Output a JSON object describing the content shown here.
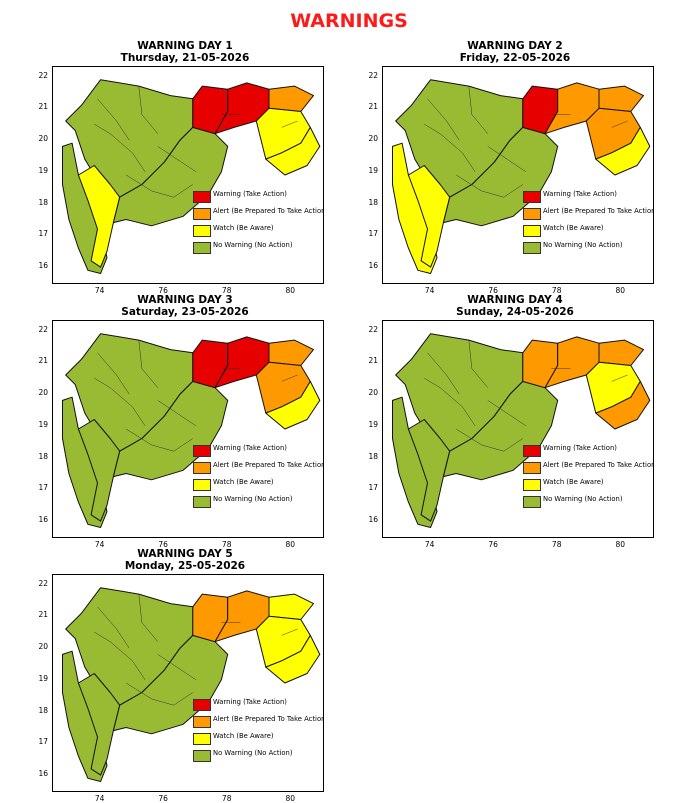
{
  "page_title": "WARNINGS",
  "colors": {
    "warning": "#e60000",
    "alert": "#ff9900",
    "watch": "#ffff00",
    "none": "#99bb33"
  },
  "axes": {
    "x_ticks": [
      "74",
      "76",
      "78",
      "80"
    ],
    "y_ticks": [
      "22",
      "21",
      "20",
      "19",
      "18",
      "17",
      "16"
    ],
    "x_range": [
      72.5,
      81
    ],
    "y_range": [
      15.5,
      22.3
    ]
  },
  "legend": [
    {
      "key": "warning",
      "label": "Warning (Take Action)",
      "color": "#e60000"
    },
    {
      "key": "alert",
      "label": "Alert (Be Prepared To Take Action)",
      "color": "#ff9900"
    },
    {
      "key": "watch",
      "label": "Watch (Be Aware)",
      "color": "#ffff00"
    },
    {
      "key": "none",
      "label": "No Warning (No Action)",
      "color": "#99bb33"
    }
  ],
  "panels": [
    {
      "day": "WARNING DAY 1",
      "date": "Thursday, 21-05-2026",
      "regions": {
        "west": "none",
        "konkan": "none",
        "ghats": "watch",
        "central": "none",
        "vid_w": "warning",
        "vid_c": "warning",
        "vid_ne": "alert",
        "vid_e": "watch",
        "vid_se": "watch"
      }
    },
    {
      "day": "WARNING DAY 2",
      "date": "Friday, 22-05-2026",
      "regions": {
        "west": "none",
        "konkan": "watch",
        "ghats": "watch",
        "central": "none",
        "vid_w": "warning",
        "vid_c": "alert",
        "vid_ne": "alert",
        "vid_e": "alert",
        "vid_se": "watch"
      }
    },
    {
      "day": "WARNING DAY 3",
      "date": "Saturday, 23-05-2026",
      "regions": {
        "west": "none",
        "konkan": "none",
        "ghats": "none",
        "central": "none",
        "vid_w": "warning",
        "vid_c": "warning",
        "vid_ne": "alert",
        "vid_e": "alert",
        "vid_se": "watch"
      }
    },
    {
      "day": "WARNING DAY 4",
      "date": "Sunday, 24-05-2026",
      "regions": {
        "west": "none",
        "konkan": "none",
        "ghats": "none",
        "central": "none",
        "vid_w": "alert",
        "vid_c": "alert",
        "vid_ne": "alert",
        "vid_e": "watch",
        "vid_se": "alert"
      }
    },
    {
      "day": "WARNING DAY 5",
      "date": "Monday, 25-05-2026",
      "regions": {
        "west": "none",
        "konkan": "none",
        "ghats": "none",
        "central": "none",
        "vid_w": "alert",
        "vid_c": "alert",
        "vid_ne": "watch",
        "vid_e": "watch",
        "vid_se": "watch"
      }
    }
  ]
}
